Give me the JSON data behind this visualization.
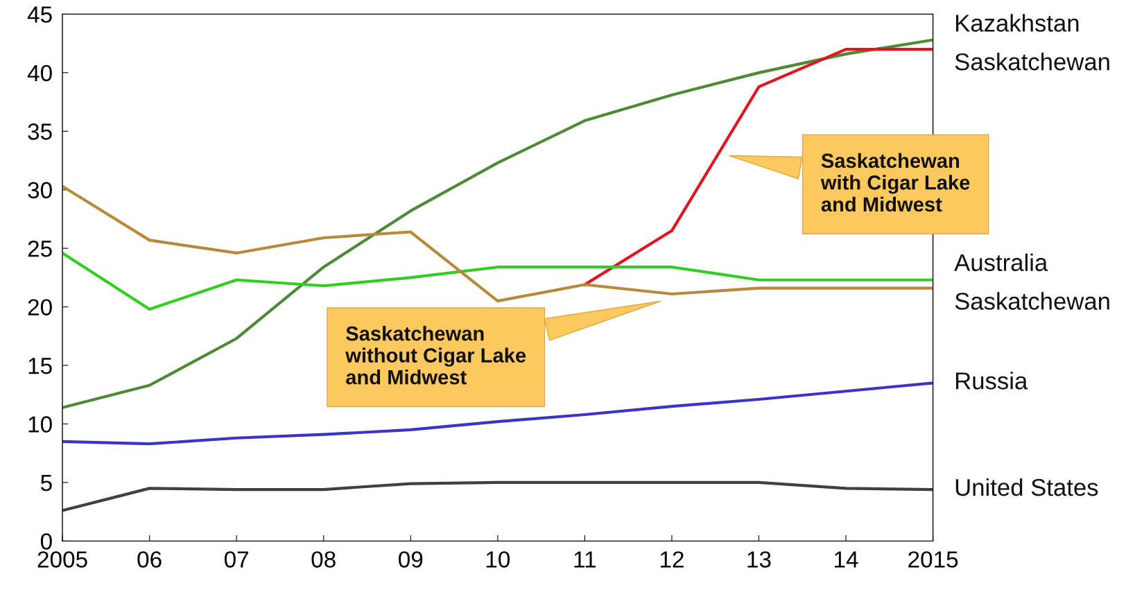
{
  "chart_data": {
    "type": "line",
    "x": [
      2005,
      2006,
      2007,
      2008,
      2009,
      2010,
      2011,
      2012,
      2013,
      2014,
      2015
    ],
    "series": [
      {
        "name": "Kazakhstan",
        "color": "#4e8a36",
        "values": [
          11.4,
          13.3,
          17.3,
          23.4,
          28.2,
          32.3,
          35.9,
          38.1,
          40.0,
          41.6,
          42.8
        ]
      },
      {
        "name": "Saskatchewan",
        "color": "#e3141e",
        "values": [
          null,
          null,
          null,
          null,
          null,
          null,
          21.9,
          26.5,
          38.8,
          42.0,
          42.0
        ]
      },
      {
        "name": "Australia",
        "color": "#33cc22",
        "values": [
          24.6,
          19.8,
          22.3,
          21.8,
          22.5,
          23.4,
          23.4,
          23.4,
          22.3,
          22.3,
          22.3
        ]
      },
      {
        "name": "Saskatchewan",
        "color": "#b8893a",
        "values": [
          30.3,
          25.7,
          24.6,
          25.9,
          26.4,
          20.5,
          21.9,
          21.1,
          21.6,
          21.6,
          21.6
        ]
      },
      {
        "name": "Russia",
        "color": "#3a35c8",
        "values": [
          8.5,
          8.3,
          8.8,
          9.1,
          9.5,
          10.2,
          10.8,
          11.5,
          12.1,
          12.8,
          13.5
        ]
      },
      {
        "name": "United States",
        "color": "#404040",
        "values": [
          2.6,
          4.5,
          4.4,
          4.4,
          4.9,
          5.0,
          5.0,
          5.0,
          5.0,
          4.5,
          4.4
        ]
      }
    ],
    "xlim": [
      2005,
      2015
    ],
    "xticks": [
      2005,
      {
        "value": 2006,
        "label": "06"
      },
      {
        "value": 2007,
        "label": "07"
      },
      {
        "value": 2008,
        "label": "08"
      },
      {
        "value": 2009,
        "label": "09"
      },
      {
        "value": 2010,
        "label": "10"
      },
      {
        "value": 2011,
        "label": "11"
      },
      {
        "value": 2012,
        "label": "12"
      },
      {
        "value": 2013,
        "label": "13"
      },
      {
        "value": 2014,
        "label": "14"
      },
      2015
    ],
    "ylim": [
      0,
      45
    ],
    "yticks": [
      0,
      5,
      10,
      15,
      20,
      25,
      30,
      35,
      40,
      45
    ],
    "annotations": [
      "Saskatchewan\nwith Cigar Lake\nand Midwest",
      "Saskatchewan\nwithout Cigar Lake\nand Midwest"
    ],
    "grid": false,
    "legend": false,
    "marker": "none",
    "line_style": "solid"
  }
}
